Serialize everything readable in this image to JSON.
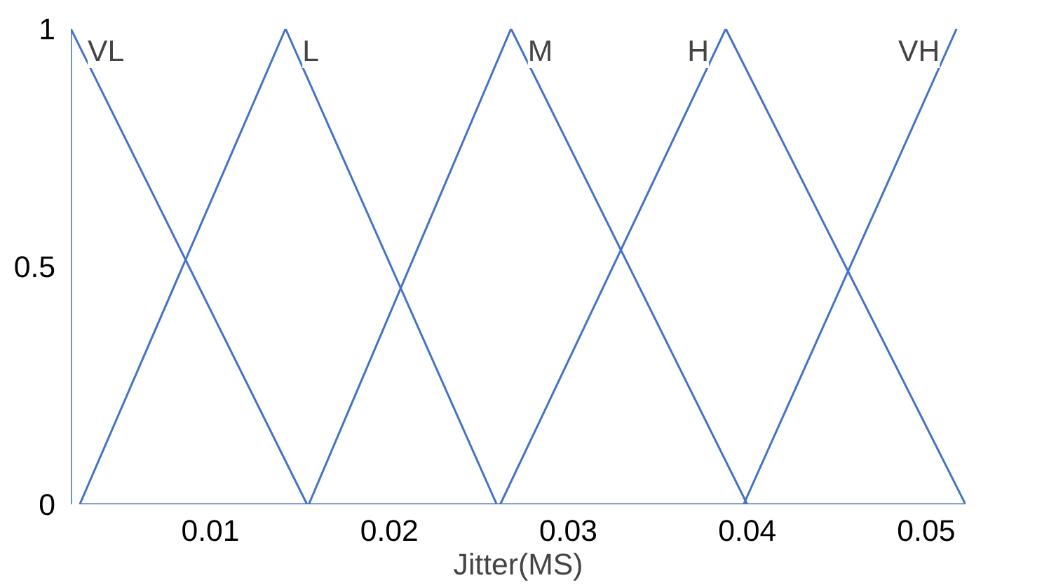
{
  "chart_data": {
    "type": "line",
    "xlim": [
      0.0022,
      0.0522
    ],
    "xlabel": "Jitter(MS)",
    "ylim": [
      0,
      1
    ],
    "xticks": [
      0.01,
      0.02,
      0.03,
      0.04,
      0.05
    ],
    "yticks": [
      0,
      0.5,
      1
    ],
    "grid": false,
    "marker": "none",
    "line_style": "solid",
    "series": [
      {
        "name": "VL",
        "color": "#4472c4",
        "x": [
          0.0022,
          0.0022,
          0.0154
        ],
        "values": [
          0,
          1,
          0
        ]
      },
      {
        "name": "L",
        "color": "#4472c4",
        "x": [
          0.0027,
          0.0142,
          0.026
        ],
        "values": [
          0,
          1,
          0
        ]
      },
      {
        "name": "M",
        "color": "#4472c4",
        "x": [
          0.0155,
          0.0268,
          0.04
        ],
        "values": [
          0,
          1,
          0
        ]
      },
      {
        "name": "H",
        "color": "#4472c4",
        "x": [
          0.0262,
          0.0388,
          0.0522
        ],
        "values": [
          0,
          1,
          0
        ]
      },
      {
        "name": "VH",
        "color": "#4472c4",
        "x": [
          0.0398,
          0.0517
        ],
        "values": [
          0,
          1
        ]
      },
      {
        "color": "#4472c4",
        "x": [
          0.0027,
          0.0522
        ],
        "values": [
          0,
          0
        ]
      }
    ]
  }
}
